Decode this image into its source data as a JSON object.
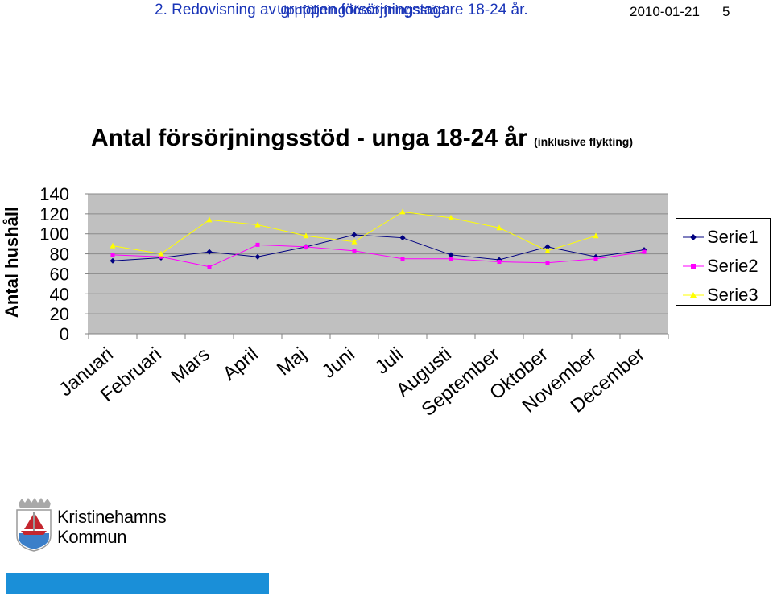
{
  "slide": {
    "heading": "2. Redovisning av gruppen försörjningstagare 18-24 år."
  },
  "chart_data": {
    "type": "line",
    "title": "Antal försörjningsstöd - unga 18-24 år",
    "subtitle": "(inklusive flykting)",
    "ylabel": "Antal hushåll",
    "ylim": [
      0,
      140
    ],
    "yticks": [
      "0",
      "20",
      "40",
      "60",
      "80",
      "100",
      "120",
      "140"
    ],
    "categories": [
      "Januari",
      "Februari",
      "Mars",
      "April",
      "Maj",
      "Juni",
      "Juli",
      "Augusti",
      "September",
      "Oktober",
      "November",
      "December"
    ],
    "grid": true,
    "legend_position": "right",
    "series": [
      {
        "name": "Serie1",
        "color": "#000080",
        "marker": "diamond",
        "values": [
          73,
          76,
          82,
          77,
          87,
          99,
          96,
          79,
          74,
          87,
          77,
          84
        ]
      },
      {
        "name": "Serie2",
        "color": "#ff00ff",
        "marker": "square",
        "values": [
          79,
          77,
          67,
          89,
          87,
          83,
          75,
          75,
          72,
          71,
          75,
          82
        ]
      },
      {
        "name": "Serie3",
        "color": "#ffff00",
        "marker": "triangle",
        "values": [
          88,
          80,
          114,
          109,
          98,
          92,
          122,
          116,
          106,
          83,
          98,
          null
        ]
      }
    ]
  },
  "logo": {
    "line1": "Kristinehamns",
    "line2": "Kommun"
  },
  "footer": {
    "title": "Uppföljning försörjningsstöd",
    "date": "2010-01-21",
    "page": "5"
  }
}
